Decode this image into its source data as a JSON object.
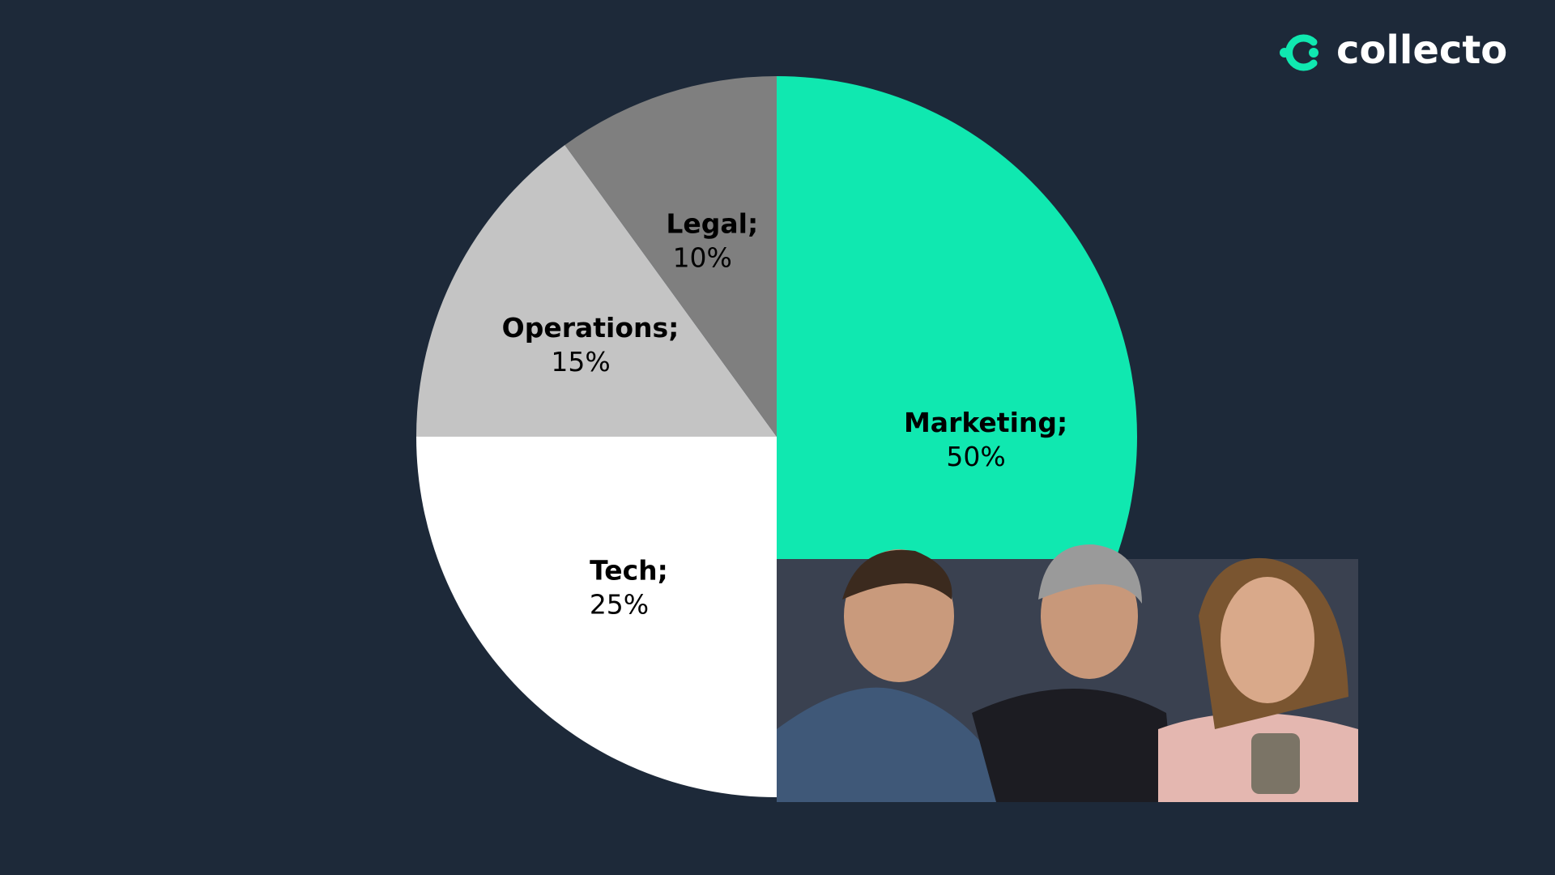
{
  "logo": "collecto",
  "chart_data": {
    "type": "pie",
    "categories": [
      "Marketing;",
      "Tech;",
      "Operations;",
      "Legal;"
    ],
    "values": [
      50,
      25,
      15,
      10
    ],
    "value_labels": [
      "50%",
      "25%",
      "15%",
      "10%"
    ],
    "colors": [
      "#10e8b0",
      "#ffffff",
      "#c4c4c4",
      "#7f7f7f"
    ]
  }
}
